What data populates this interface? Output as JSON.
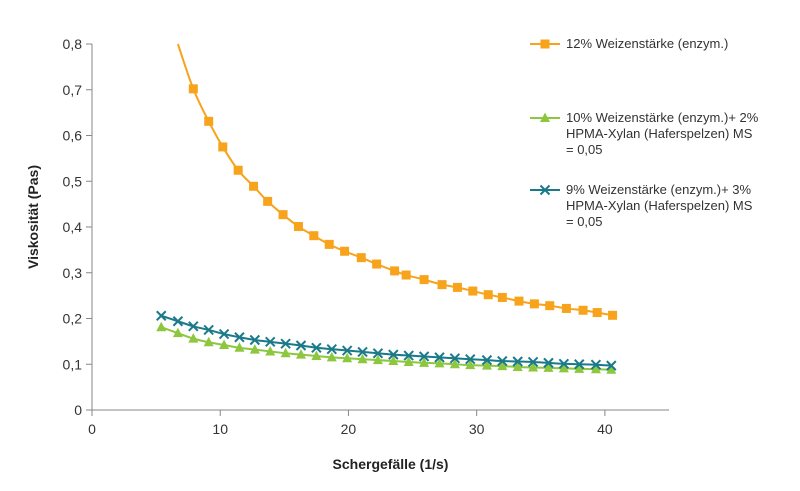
{
  "colors": {
    "s1": "#f7a31b",
    "s2": "#8dc63f",
    "s3": "#1b7a8a",
    "axis": "#878787"
  },
  "chart_data": {
    "type": "line",
    "xlabel": "Schergefälle (1/s)",
    "ylabel": "Viskosität (Pas)",
    "xlim": [
      0,
      45
    ],
    "ylim": [
      0,
      0.8
    ],
    "x_ticks": [
      0,
      10,
      20,
      30,
      40
    ],
    "x_tick_labels": [
      "0",
      "10",
      "20",
      "30",
      "40"
    ],
    "y_ticks": [
      0,
      0.1,
      0.2,
      0.3,
      0.4,
      0.5,
      0.6,
      0.7,
      0.8
    ],
    "y_tick_labels": [
      "0",
      "0,1",
      "0,2",
      "0,3",
      "0,4",
      "0,5",
      "0,6",
      "0,7",
      "0,8"
    ],
    "legend_position": "right",
    "series": [
      {
        "name": "12% Weizenstärke (enzym.)",
        "legend_lines": [
          "12% Weizenstärke (enzym.)"
        ],
        "marker": "square",
        "color": "#f7a31b",
        "curve_start": [
          6.7,
          0.8
        ],
        "x": [
          7.9,
          9.1,
          10.2,
          11.4,
          12.6,
          13.7,
          14.9,
          16.1,
          17.3,
          18.5,
          19.7,
          21.0,
          22.2,
          23.6,
          24.5,
          25.9,
          27.3,
          28.5,
          29.7,
          30.9,
          32.0,
          33.3,
          34.5,
          35.7,
          37.0,
          38.3,
          39.4,
          40.6
        ],
        "y": [
          0.702,
          0.631,
          0.575,
          0.524,
          0.489,
          0.456,
          0.427,
          0.401,
          0.381,
          0.362,
          0.347,
          0.333,
          0.319,
          0.304,
          0.295,
          0.285,
          0.274,
          0.268,
          0.26,
          0.252,
          0.246,
          0.238,
          0.232,
          0.228,
          0.222,
          0.218,
          0.213,
          0.207
        ]
      },
      {
        "name": "10% Weizenstärke (enzym.)+ 2% HPMA-Xylan (Haferspelzen) MS = 0,05",
        "legend_lines": [
          "10% Weizenstärke (enzym.)+ 2%",
          "HPMA-Xylan (Haferspelzen) MS",
          "= 0,05"
        ],
        "marker": "triangle",
        "color": "#8dc63f",
        "x": [
          5.4,
          6.7,
          7.9,
          9.1,
          10.3,
          11.5,
          12.7,
          13.9,
          15.1,
          16.3,
          17.5,
          18.7,
          19.9,
          21.1,
          22.3,
          23.5,
          24.7,
          25.9,
          27.1,
          28.3,
          29.5,
          30.8,
          32.0,
          33.2,
          34.4,
          35.6,
          36.8,
          38.0,
          39.3,
          40.5
        ],
        "y": [
          0.181,
          0.168,
          0.156,
          0.148,
          0.142,
          0.136,
          0.132,
          0.128,
          0.124,
          0.121,
          0.118,
          0.115,
          0.113,
          0.111,
          0.109,
          0.107,
          0.105,
          0.103,
          0.102,
          0.1,
          0.098,
          0.097,
          0.096,
          0.094,
          0.093,
          0.092,
          0.091,
          0.09,
          0.089,
          0.088
        ]
      },
      {
        "name": "9% Weizenstärke (enzym.)+ 3% HPMA-Xylan (Haferspelzen) MS = 0,05",
        "legend_lines": [
          "9% Weizenstärke (enzym.)+ 3%",
          "HPMA-Xylan (Haferspelzen) MS",
          "= 0,05"
        ],
        "marker": "x",
        "color": "#1b7a8a",
        "x": [
          5.4,
          6.7,
          7.9,
          9.1,
          10.3,
          11.5,
          12.7,
          13.9,
          15.1,
          16.3,
          17.5,
          18.7,
          19.9,
          21.1,
          22.3,
          23.5,
          24.7,
          25.9,
          27.1,
          28.3,
          29.5,
          30.8,
          32.0,
          33.2,
          34.4,
          35.6,
          36.8,
          38.0,
          39.3,
          40.5
        ],
        "y": [
          0.206,
          0.194,
          0.183,
          0.175,
          0.166,
          0.159,
          0.153,
          0.149,
          0.145,
          0.141,
          0.136,
          0.133,
          0.13,
          0.127,
          0.124,
          0.121,
          0.119,
          0.117,
          0.115,
          0.113,
          0.111,
          0.109,
          0.107,
          0.106,
          0.105,
          0.103,
          0.101,
          0.1,
          0.099,
          0.097
        ]
      }
    ]
  }
}
